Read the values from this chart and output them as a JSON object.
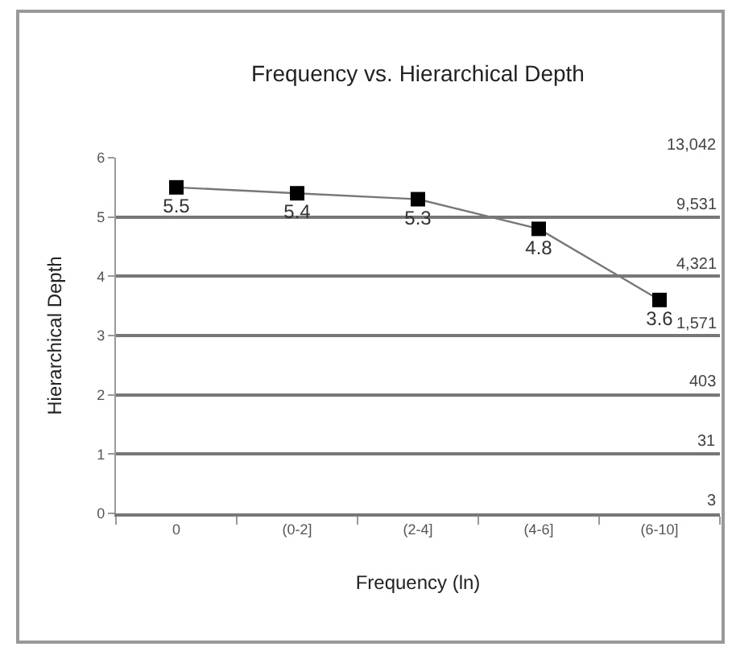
{
  "chart_data": {
    "type": "line",
    "title": "Frequency vs. Hierarchical Depth",
    "xlabel": "Frequency (ln)",
    "ylabel": "Hierarchical Depth",
    "categories": [
      "0",
      "(0-2]",
      "(2-4]",
      "(4-6]",
      "(6-10]"
    ],
    "series": [
      {
        "color": "#000000",
        "values": [
          5.5,
          5.4,
          5.3,
          4.8,
          3.6
        ]
      }
    ],
    "ylim": [
      0,
      6
    ],
    "yticks": [
      0,
      1,
      2,
      3,
      4,
      5,
      6
    ],
    "grid": "y",
    "marker": "square",
    "line_style": "solid",
    "data_labels": true,
    "annotations": [
      "13,042",
      "9,531",
      "4,321",
      "1,571",
      "403",
      "31",
      "3"
    ]
  }
}
